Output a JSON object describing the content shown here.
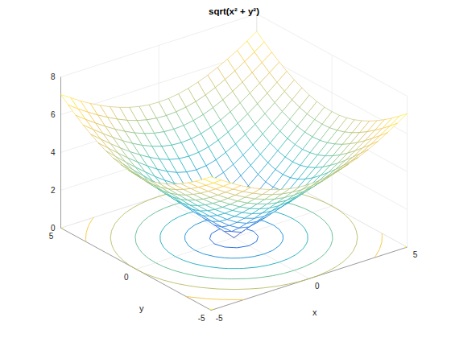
{
  "chart_data": {
    "type": "mesh",
    "title": "sqrt(x² + y²)",
    "xlabel": "x",
    "ylabel": "y",
    "x": [
      -5,
      -4.5,
      -4,
      -3.5,
      -3,
      -2.5,
      -2,
      -1.5,
      -1,
      -0.5,
      0,
      0.5,
      1,
      1.5,
      2,
      2.5,
      3,
      3.5,
      4,
      4.5,
      5
    ],
    "y": [
      -5,
      -4.5,
      -4,
      -3.5,
      -3,
      -2.5,
      -2,
      -1.5,
      -1,
      -0.5,
      0,
      0.5,
      1,
      1.5,
      2,
      2.5,
      3,
      3.5,
      4,
      4.5,
      5
    ],
    "z": [
      [
        7.07,
        6.73,
        6.4,
        6.1,
        5.83,
        5.59,
        5.39,
        5.22,
        5.1,
        5.02,
        5,
        5.02,
        5.1,
        5.22,
        5.39,
        5.59,
        5.83,
        6.1,
        6.4,
        6.73,
        7.07
      ],
      [
        6.73,
        6.36,
        6.02,
        5.7,
        5.41,
        5.15,
        4.92,
        4.74,
        4.61,
        4.53,
        4.5,
        4.53,
        4.61,
        4.74,
        4.92,
        5.15,
        5.41,
        5.7,
        6.02,
        6.36,
        6.73
      ],
      [
        6.4,
        6.02,
        5.66,
        5.32,
        5,
        4.72,
        4.47,
        4.27,
        4.12,
        4.03,
        4,
        4.03,
        4.12,
        4.27,
        4.47,
        4.72,
        5,
        5.32,
        5.66,
        6.02,
        6.4
      ],
      [
        6.1,
        5.7,
        5.32,
        4.95,
        4.61,
        4.3,
        4.03,
        3.81,
        3.64,
        3.54,
        3.5,
        3.54,
        3.64,
        3.81,
        4.03,
        4.3,
        4.61,
        4.95,
        5.32,
        5.7,
        6.1
      ],
      [
        5.83,
        5.41,
        5,
        4.61,
        4.24,
        3.91,
        3.61,
        3.35,
        3.16,
        3.04,
        3,
        3.04,
        3.16,
        3.35,
        3.61,
        3.91,
        4.24,
        4.61,
        5,
        5.41,
        5.83
      ],
      [
        5.59,
        5.15,
        4.72,
        4.3,
        3.91,
        3.54,
        3.2,
        2.92,
        2.69,
        2.55,
        2.5,
        2.55,
        2.69,
        2.92,
        3.2,
        3.54,
        3.91,
        4.3,
        4.72,
        5.15,
        5.59
      ],
      [
        5.39,
        4.92,
        4.47,
        4.03,
        3.61,
        3.2,
        2.83,
        2.5,
        2.24,
        2.06,
        2,
        2.06,
        2.24,
        2.5,
        2.83,
        3.2,
        3.61,
        4.03,
        4.47,
        4.92,
        5.39
      ],
      [
        5.22,
        4.74,
        4.27,
        3.81,
        3.35,
        2.92,
        2.5,
        2.12,
        1.8,
        1.58,
        1.5,
        1.58,
        1.8,
        2.12,
        2.5,
        2.92,
        3.35,
        3.81,
        4.27,
        4.74,
        5.22
      ],
      [
        5.1,
        4.61,
        4.12,
        3.64,
        3.16,
        2.69,
        2.24,
        1.8,
        1.41,
        1.12,
        1,
        1.12,
        1.41,
        1.8,
        2.24,
        2.69,
        3.16,
        3.64,
        4.12,
        4.61,
        5.1
      ],
      [
        5.02,
        4.53,
        4.03,
        3.54,
        3.04,
        2.55,
        2.06,
        1.58,
        1.12,
        0.71,
        0.5,
        0.71,
        1.12,
        1.58,
        2.06,
        2.55,
        3.04,
        3.54,
        4.03,
        4.53,
        5.02
      ],
      [
        5,
        4.5,
        4,
        3.5,
        3,
        2.5,
        2,
        1.5,
        1,
        0.5,
        0,
        0.5,
        1,
        1.5,
        2,
        2.5,
        3,
        3.5,
        4,
        4.5,
        5
      ],
      [
        5.02,
        4.53,
        4.03,
        3.54,
        3.04,
        2.55,
        2.06,
        1.58,
        1.12,
        0.71,
        0.5,
        0.71,
        1.12,
        1.58,
        2.06,
        2.55,
        3.04,
        3.54,
        4.03,
        4.53,
        5.02
      ],
      [
        5.1,
        4.61,
        4.12,
        3.64,
        3.16,
        2.69,
        2.24,
        1.8,
        1.41,
        1.12,
        1,
        1.12,
        1.41,
        1.8,
        2.24,
        2.69,
        3.16,
        3.64,
        4.12,
        4.61,
        5.1
      ],
      [
        5.22,
        4.74,
        4.27,
        3.81,
        3.35,
        2.92,
        2.5,
        2.12,
        1.8,
        1.58,
        1.5,
        1.58,
        1.8,
        2.12,
        2.5,
        2.92,
        3.35,
        3.81,
        4.27,
        4.74,
        5.22
      ],
      [
        5.39,
        4.92,
        4.47,
        4.03,
        3.61,
        3.2,
        2.83,
        2.5,
        2.24,
        2.06,
        2,
        2.06,
        2.24,
        2.5,
        2.83,
        3.2,
        3.61,
        4.03,
        4.47,
        4.92,
        5.39
      ],
      [
        5.59,
        5.15,
        4.72,
        4.3,
        3.91,
        3.54,
        3.2,
        2.92,
        2.69,
        2.55,
        2.5,
        2.55,
        2.69,
        2.92,
        3.2,
        3.54,
        3.91,
        4.3,
        4.72,
        5.15,
        5.59
      ],
      [
        5.83,
        5.41,
        5,
        4.61,
        4.24,
        3.91,
        3.61,
        3.35,
        3.16,
        3.04,
        3,
        3.04,
        3.16,
        3.35,
        3.61,
        3.91,
        4.24,
        4.61,
        5,
        5.41,
        5.83
      ],
      [
        6.1,
        5.7,
        5.32,
        4.95,
        4.61,
        4.3,
        4.03,
        3.81,
        3.64,
        3.54,
        3.5,
        3.54,
        3.64,
        3.81,
        4.03,
        4.3,
        4.61,
        4.95,
        5.32,
        5.7,
        6.1
      ],
      [
        6.4,
        6.02,
        5.66,
        5.32,
        5,
        4.72,
        4.47,
        4.27,
        4.12,
        4.03,
        4,
        4.03,
        4.12,
        4.27,
        4.47,
        4.72,
        5,
        5.32,
        5.66,
        6.02,
        6.4
      ],
      [
        6.73,
        6.36,
        6.02,
        5.7,
        5.41,
        5.15,
        4.92,
        4.74,
        4.61,
        4.53,
        4.5,
        4.53,
        4.61,
        4.74,
        4.92,
        5.15,
        5.41,
        5.7,
        6.02,
        6.36,
        6.73
      ],
      [
        7.07,
        6.73,
        6.4,
        6.1,
        5.83,
        5.59,
        5.39,
        5.22,
        5.1,
        5.02,
        5,
        5.02,
        5.1,
        5.22,
        5.39,
        5.59,
        5.83,
        6.1,
        6.4,
        6.73,
        7.07
      ]
    ],
    "contour_levels": [
      1,
      2,
      3,
      4,
      5,
      6,
      7
    ],
    "xlim": [
      -5,
      5
    ],
    "ylim": [
      -5,
      5
    ],
    "zlim": [
      0,
      8
    ],
    "xticks": [
      -5,
      0,
      5
    ],
    "yticks": [
      -5,
      0,
      5
    ],
    "zticks": [
      0,
      2,
      4,
      6,
      8
    ],
    "grid": true
  }
}
